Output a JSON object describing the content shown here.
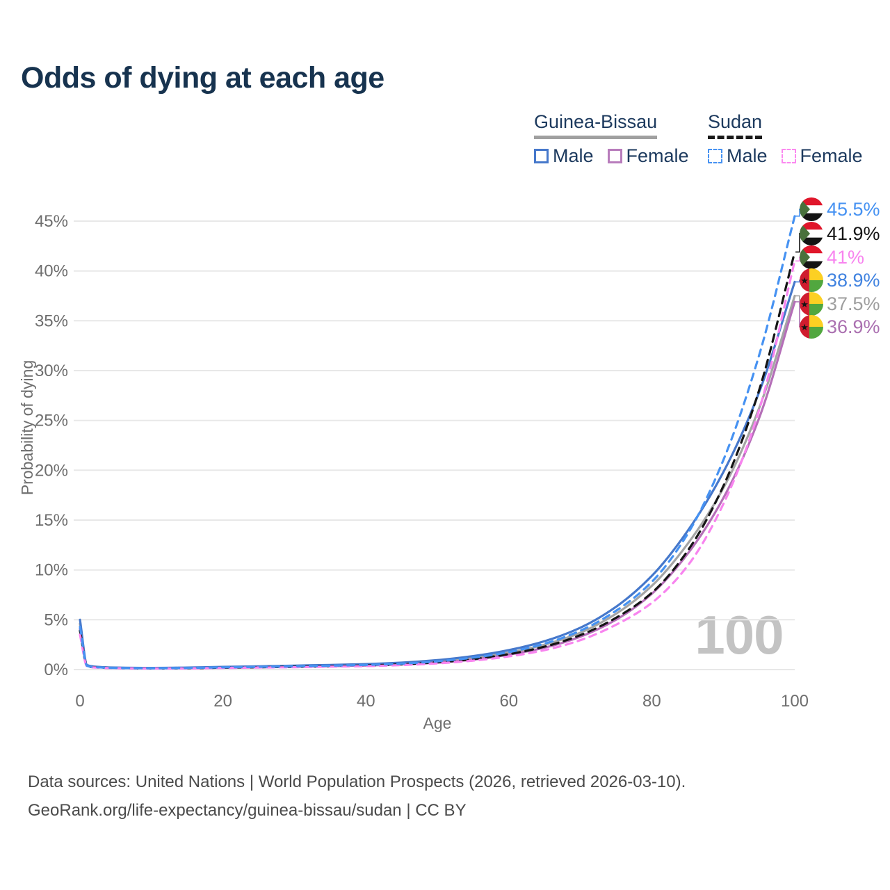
{
  "title": "Odds of dying at each age",
  "legend": {
    "groups": [
      {
        "name": "Guinea-Bissau",
        "line_style": "solid",
        "underline_color": "#a0a0a0",
        "items": [
          {
            "label": "Male",
            "color": "#4678cb"
          },
          {
            "label": "Female",
            "color": "#b87cbc"
          }
        ]
      },
      {
        "name": "Sudan",
        "line_style": "dashed",
        "underline_color": "#1a1a1a",
        "items": [
          {
            "label": "Male",
            "color": "#4692f2"
          },
          {
            "label": "Female",
            "color": "#fb8af0"
          }
        ]
      }
    ]
  },
  "watermark": "100",
  "footer": {
    "line1": "Data sources: United Nations | World Population Prospects (2026, retrieved 2026-03-10).",
    "line2": "GeoRank.org/life-expectancy/guinea-bissau/sudan | CC BY"
  },
  "chart_data": {
    "type": "line",
    "title": "Odds of dying at each age",
    "xlabel": "Age",
    "ylabel": "Probability of dying",
    "xlim": [
      0,
      100
    ],
    "ylim": [
      0,
      45.5
    ],
    "xticks": [
      0,
      20,
      40,
      60,
      80,
      100
    ],
    "yticks": [
      0,
      5,
      10,
      15,
      20,
      25,
      30,
      35,
      40,
      45
    ],
    "ytick_suffix": "%",
    "grid": "horizontal",
    "legend_position": "top-right",
    "x": [
      0,
      1,
      2,
      5,
      10,
      15,
      20,
      25,
      30,
      35,
      40,
      45,
      50,
      55,
      60,
      65,
      70,
      75,
      80,
      85,
      90,
      95,
      100
    ],
    "series": [
      {
        "name": "Guinea-Bissau Total",
        "country": "Guinea-Bissau",
        "sex": "Both",
        "style": "solid",
        "color": "#a5a5a5",
        "end_label": "37.5%",
        "values": [
          4.6,
          0.42,
          0.28,
          0.18,
          0.15,
          0.17,
          0.23,
          0.28,
          0.34,
          0.4,
          0.48,
          0.6,
          0.82,
          1.15,
          1.7,
          2.5,
          3.7,
          5.6,
          8.4,
          12.6,
          18.2,
          26.2,
          37.5
        ]
      },
      {
        "name": "Guinea-Bissau Female",
        "country": "Guinea-Bissau",
        "sex": "Female",
        "style": "solid",
        "color": "#b56fb8",
        "end_label": "36.9%",
        "values": [
          4.1,
          0.4,
          0.26,
          0.17,
          0.14,
          0.15,
          0.19,
          0.23,
          0.28,
          0.34,
          0.41,
          0.52,
          0.7,
          1.0,
          1.5,
          2.2,
          3.3,
          5.0,
          7.6,
          11.6,
          17.2,
          25.2,
          36.9
        ]
      },
      {
        "name": "Guinea-Bissau Male",
        "country": "Guinea-Bissau",
        "sex": "Male",
        "style": "solid",
        "color": "#4678cb",
        "end_label": "38.9%",
        "values": [
          5.0,
          0.45,
          0.3,
          0.2,
          0.17,
          0.2,
          0.27,
          0.33,
          0.4,
          0.47,
          0.55,
          0.7,
          0.95,
          1.35,
          1.95,
          2.85,
          4.2,
          6.3,
          9.4,
          13.9,
          19.8,
          27.8,
          38.9
        ]
      },
      {
        "name": "Sudan Total",
        "country": "Sudan",
        "sex": "Both",
        "style": "dashed",
        "color": "#151515",
        "end_label": "41.9%",
        "values": [
          3.9,
          0.35,
          0.23,
          0.15,
          0.12,
          0.14,
          0.19,
          0.23,
          0.28,
          0.34,
          0.41,
          0.53,
          0.73,
          1.05,
          1.55,
          2.3,
          3.45,
          5.2,
          7.7,
          11.9,
          18.4,
          28.0,
          41.9
        ]
      },
      {
        "name": "Sudan Female",
        "country": "Sudan",
        "sex": "Female",
        "style": "dashed",
        "color": "#f884ef",
        "end_label": "41%",
        "values": [
          3.5,
          0.32,
          0.21,
          0.14,
          0.11,
          0.12,
          0.16,
          0.2,
          0.24,
          0.29,
          0.35,
          0.45,
          0.62,
          0.9,
          1.32,
          1.95,
          2.95,
          4.5,
          6.7,
          10.4,
          16.6,
          26.0,
          41.0
        ]
      },
      {
        "name": "Sudan Male",
        "country": "Sudan",
        "sex": "Male",
        "style": "dashed",
        "color": "#4692f2",
        "end_label": "45.5%",
        "values": [
          4.3,
          0.38,
          0.25,
          0.16,
          0.13,
          0.16,
          0.22,
          0.27,
          0.33,
          0.39,
          0.47,
          0.6,
          0.83,
          1.2,
          1.75,
          2.6,
          3.9,
          5.9,
          8.8,
          13.6,
          21.0,
          31.5,
          45.5
        ]
      }
    ]
  },
  "end_labels": [
    {
      "value": "45.5%",
      "series": "Sudan Male",
      "flag": "sudan",
      "color": "#4692f2"
    },
    {
      "value": "41.9%",
      "series": "Sudan Total",
      "flag": "sudan",
      "color": "#151515"
    },
    {
      "value": "41%",
      "series": "Sudan Female",
      "flag": "sudan",
      "color": "#f884ef"
    },
    {
      "value": "38.9%",
      "series": "Guinea-Bissau Male",
      "flag": "guinea-bissau",
      "color": "#4183e0"
    },
    {
      "value": "37.5%",
      "series": "Guinea-Bissau Total",
      "flag": "guinea-bissau",
      "color": "#9e9e9e"
    },
    {
      "value": "36.9%",
      "series": "Guinea-Bissau Female",
      "flag": "guinea-bissau",
      "color": "#aa6fb0"
    }
  ],
  "flags": {
    "sudan": {
      "red": "#e0162b",
      "white": "#ffffff",
      "black": "#141414",
      "green": "#49713c"
    },
    "guinea-bissau": {
      "red": "#d01c2e",
      "yellow": "#fcd023",
      "green": "#51a73f",
      "star": "#141414"
    }
  }
}
